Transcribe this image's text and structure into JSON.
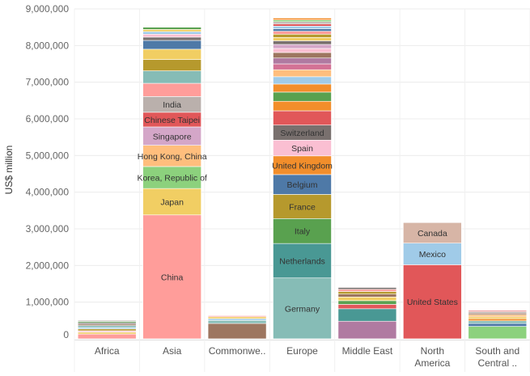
{
  "chart_data": {
    "type": "bar",
    "stacked": true,
    "title": "",
    "xlabel": "",
    "ylabel": "US$ million",
    "ylim": [
      0,
      9000000
    ],
    "yticks": [
      0,
      1000000,
      2000000,
      3000000,
      4000000,
      5000000,
      6000000,
      7000000,
      8000000,
      9000000
    ],
    "ytick_labels": [
      "0",
      "1,000,000",
      "2,000,000",
      "3,000,000",
      "4,000,000",
      "5,000,000",
      "6,000,000",
      "7,000,000",
      "8,000,000",
      "9,000,000"
    ],
    "grid": true,
    "categories": [
      "Africa",
      "Asia",
      "Commonwe..",
      "Europe",
      "Middle East",
      "North America",
      "South and Central .."
    ],
    "category_lines": [
      [
        "Africa"
      ],
      [
        "Asia"
      ],
      [
        "Commonwe.."
      ],
      [
        "Europe"
      ],
      [
        "Middle East"
      ],
      [
        "North",
        "America"
      ],
      [
        "South and",
        "Central .."
      ]
    ],
    "bars": [
      {
        "category": "Africa",
        "segments": [
          {
            "label": "",
            "value": 130000,
            "color": "#ff9d9a"
          },
          {
            "label": "",
            "value": 50000,
            "color": "#f1ce63"
          },
          {
            "label": "",
            "value": 40000,
            "color": "#fabfd2"
          },
          {
            "label": "",
            "value": 50000,
            "color": "#b6992d"
          },
          {
            "label": "",
            "value": 40000,
            "color": "#a0cbe8"
          },
          {
            "label": "",
            "value": 50000,
            "color": "#86bcb6"
          },
          {
            "label": "",
            "value": 40000,
            "color": "#9d7660"
          },
          {
            "label": "",
            "value": 40000,
            "color": "#79706e"
          },
          {
            "label": "",
            "value": 35000,
            "color": "#59a14f"
          },
          {
            "label": "",
            "value": 30000,
            "color": "#bab0ac"
          }
        ]
      },
      {
        "category": "Asia",
        "segments": [
          {
            "label": "China",
            "value": 3380000,
            "color": "#ff9d9a"
          },
          {
            "label": "Japan",
            "value": 720000,
            "color": "#f1ce63"
          },
          {
            "label": "Korea, Republic of",
            "value": 600000,
            "color": "#8cd17d"
          },
          {
            "label": "Hong Kong, China",
            "value": 580000,
            "color": "#ffbe7d"
          },
          {
            "label": "Singapore",
            "value": 500000,
            "color": "#d4a6c8"
          },
          {
            "label": "Chinese Taipei",
            "value": 400000,
            "color": "#e15759"
          },
          {
            "label": "India",
            "value": 430000,
            "color": "#bab0ac"
          },
          {
            "label": "",
            "value": 360000,
            "color": "#ff9d9a"
          },
          {
            "label": "",
            "value": 340000,
            "color": "#86bcb6"
          },
          {
            "label": "",
            "value": 310000,
            "color": "#b6992d"
          },
          {
            "label": "",
            "value": 280000,
            "color": "#f1ce63"
          },
          {
            "label": "",
            "value": 240000,
            "color": "#4e79a7"
          },
          {
            "label": "",
            "value": 90000,
            "color": "#79706e"
          },
          {
            "label": "",
            "value": 80000,
            "color": "#fabfd2"
          },
          {
            "label": "",
            "value": 70000,
            "color": "#a0cbe8"
          },
          {
            "label": "",
            "value": 60000,
            "color": "#f1ce63"
          },
          {
            "label": "",
            "value": 60000,
            "color": "#59a14f"
          }
        ]
      },
      {
        "category": "Commonwe..",
        "segments": [
          {
            "label": "",
            "value": 420000,
            "color": "#9d7660"
          },
          {
            "label": "",
            "value": 80000,
            "color": "#86bcb6"
          },
          {
            "label": "",
            "value": 50000,
            "color": "#a0cbe8"
          },
          {
            "label": "",
            "value": 50000,
            "color": "#f1ce63"
          },
          {
            "label": "",
            "value": 30000,
            "color": "#ff9d9a"
          }
        ]
      },
      {
        "category": "Europe",
        "segments": [
          {
            "label": "Germany",
            "value": 1660000,
            "color": "#86bcb6"
          },
          {
            "label": "Netherlands",
            "value": 940000,
            "color": "#499894"
          },
          {
            "label": "Italy",
            "value": 680000,
            "color": "#59a14f"
          },
          {
            "label": "France",
            "value": 660000,
            "color": "#b6992d"
          },
          {
            "label": "Belgium",
            "value": 540000,
            "color": "#4e79a7"
          },
          {
            "label": "United Kingdom",
            "value": 510000,
            "color": "#f28e2b"
          },
          {
            "label": "Spain",
            "value": 430000,
            "color": "#fabfd2"
          },
          {
            "label": "Switzerland",
            "value": 410000,
            "color": "#79706e"
          },
          {
            "label": "",
            "value": 390000,
            "color": "#e15759"
          },
          {
            "label": "",
            "value": 260000,
            "color": "#f28e2b"
          },
          {
            "label": "",
            "value": 250000,
            "color": "#59a14f"
          },
          {
            "label": "",
            "value": 220000,
            "color": "#f28e2b"
          },
          {
            "label": "",
            "value": 200000,
            "color": "#a0cbe8"
          },
          {
            "label": "",
            "value": 190000,
            "color": "#ffbe7d"
          },
          {
            "label": "",
            "value": 160000,
            "color": "#d37295"
          },
          {
            "label": "",
            "value": 160000,
            "color": "#b07aa1"
          },
          {
            "label": "",
            "value": 150000,
            "color": "#9d7660"
          },
          {
            "label": "",
            "value": 110000,
            "color": "#fabfd2"
          },
          {
            "label": "",
            "value": 110000,
            "color": "#d4a6c8"
          },
          {
            "label": "",
            "value": 100000,
            "color": "#79706e"
          },
          {
            "label": "",
            "value": 90000,
            "color": "#f1ce63"
          },
          {
            "label": "",
            "value": 90000,
            "color": "#b6992d"
          },
          {
            "label": "",
            "value": 80000,
            "color": "#ff9d9a"
          },
          {
            "label": "",
            "value": 70000,
            "color": "#4e79a7"
          },
          {
            "label": "",
            "value": 70000,
            "color": "#a0cbe8"
          },
          {
            "label": "",
            "value": 60000,
            "color": "#e15759"
          },
          {
            "label": "",
            "value": 60000,
            "color": "#bab0ac"
          },
          {
            "label": "",
            "value": 50000,
            "color": "#8cd17d"
          },
          {
            "label": "",
            "value": 50000,
            "color": "#f28e2b"
          }
        ]
      },
      {
        "category": "Middle East",
        "segments": [
          {
            "label": "",
            "value": 480000,
            "color": "#b07aa1"
          },
          {
            "label": "",
            "value": 340000,
            "color": "#499894"
          },
          {
            "label": "",
            "value": 120000,
            "color": "#e15759"
          },
          {
            "label": "",
            "value": 100000,
            "color": "#59a14f"
          },
          {
            "label": "",
            "value": 100000,
            "color": "#f1ce63"
          },
          {
            "label": "",
            "value": 80000,
            "color": "#9d7660"
          },
          {
            "label": "",
            "value": 70000,
            "color": "#b6992d"
          },
          {
            "label": "",
            "value": 60000,
            "color": "#ff9d9a"
          },
          {
            "label": "",
            "value": 50000,
            "color": "#79706e"
          }
        ]
      },
      {
        "category": "North America",
        "segments": [
          {
            "label": "United States",
            "value": 2020000,
            "color": "#e15759"
          },
          {
            "label": "Mexico",
            "value": 590000,
            "color": "#a0cbe8"
          },
          {
            "label": "Canada",
            "value": 560000,
            "color": "#d7b5a6"
          }
        ]
      },
      {
        "category": "South and Central ..",
        "segments": [
          {
            "label": "",
            "value": 340000,
            "color": "#8cd17d"
          },
          {
            "label": "",
            "value": 80000,
            "color": "#4e79a7"
          },
          {
            "label": "",
            "value": 70000,
            "color": "#86bcb6"
          },
          {
            "label": "",
            "value": 60000,
            "color": "#f28e2b"
          },
          {
            "label": "",
            "value": 50000,
            "color": "#f1ce63"
          },
          {
            "label": "",
            "value": 60000,
            "color": "#ffbe7d"
          },
          {
            "label": "",
            "value": 40000,
            "color": "#9d7660"
          },
          {
            "label": "",
            "value": 40000,
            "color": "#bab0ac"
          },
          {
            "label": "",
            "value": 30000,
            "color": "#e15759"
          }
        ]
      }
    ]
  }
}
